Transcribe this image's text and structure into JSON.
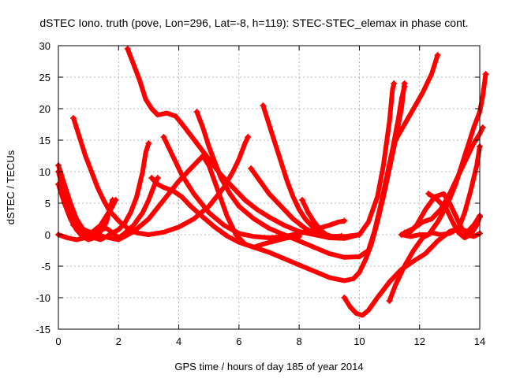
{
  "chart_data": {
    "type": "scatter",
    "title": "dSTEC Iono. truth (pove, Lon=296, Lat=-8, h=119): STEC-STEC_elemax in phase cont.",
    "xlabel": "GPS time / hours of day 185 of year 2014",
    "ylabel": "dSTEC  / TECUs",
    "xlim": [
      0,
      14
    ],
    "ylim": [
      -15,
      30
    ],
    "xticks": [
      0,
      2,
      4,
      6,
      8,
      10,
      12,
      14
    ],
    "yticks": [
      -15,
      -10,
      -5,
      0,
      5,
      10,
      15,
      20,
      25,
      30
    ],
    "grid": true,
    "marker": "plus",
    "color": "#ff0000",
    "series": [
      {
        "points": [
          [
            0,
            11
          ],
          [
            0.2,
            8
          ],
          [
            0.4,
            5
          ],
          [
            0.6,
            2.5
          ],
          [
            0.8,
            1
          ],
          [
            1.0,
            0.2
          ],
          [
            1.2,
            -0.5
          ],
          [
            1.4,
            -0.8
          ],
          [
            1.6,
            -0.3
          ],
          [
            1.8,
            0.3
          ],
          [
            2.0,
            0.8
          ],
          [
            2.2,
            1.8
          ],
          [
            2.4,
            3.5
          ],
          [
            2.6,
            6
          ],
          [
            2.8,
            10
          ],
          [
            2.9,
            13
          ],
          [
            3.0,
            14.5
          ]
        ]
      },
      {
        "points": [
          [
            0,
            8
          ],
          [
            0.2,
            5
          ],
          [
            0.4,
            2.5
          ],
          [
            0.6,
            0.8
          ],
          [
            0.8,
            -0.3
          ],
          [
            1.0,
            -0.8
          ],
          [
            1.2,
            -0.5
          ],
          [
            1.4,
            0.5
          ],
          [
            1.6,
            2
          ],
          [
            1.7,
            4
          ],
          [
            1.8,
            5.5
          ]
        ]
      },
      {
        "points": [
          [
            0,
            10
          ],
          [
            0.2,
            6.5
          ],
          [
            0.4,
            3.5
          ],
          [
            0.6,
            1.5
          ],
          [
            0.8,
            0.5
          ],
          [
            1.0,
            0
          ],
          [
            1.2,
            0.3
          ],
          [
            1.4,
            0.8
          ],
          [
            1.6,
            1
          ],
          [
            1.8,
            0.3
          ],
          [
            2.0,
            -0.5
          ],
          [
            2.2,
            0.2
          ],
          [
            2.5,
            1.5
          ],
          [
            2.8,
            3.5
          ],
          [
            3.0,
            5.5
          ],
          [
            3.2,
            8
          ],
          [
            3.3,
            9
          ]
        ]
      },
      {
        "points": [
          [
            0,
            0
          ],
          [
            0.3,
            -0.5
          ],
          [
            0.6,
            -0.8
          ],
          [
            0.9,
            -0.5
          ],
          [
            1.1,
            0.3
          ],
          [
            1.4,
            1.5
          ],
          [
            1.6,
            3
          ],
          [
            1.8,
            4.5
          ],
          [
            1.9,
            5.5
          ]
        ]
      },
      {
        "points": [
          [
            0.5,
            18.5
          ],
          [
            0.7,
            15.5
          ],
          [
            0.9,
            12.5
          ],
          [
            1.1,
            10
          ],
          [
            1.3,
            7.5
          ],
          [
            1.5,
            5.5
          ],
          [
            1.7,
            3.8
          ],
          [
            2.0,
            2.2
          ],
          [
            2.3,
            1
          ],
          [
            2.6,
            0.3
          ],
          [
            3.0,
            0
          ],
          [
            3.5,
            0.4
          ],
          [
            4.0,
            1.2
          ],
          [
            4.5,
            2.5
          ],
          [
            5.0,
            4.5
          ],
          [
            5.5,
            7.5
          ],
          [
            5.8,
            10
          ],
          [
            6.0,
            12
          ],
          [
            6.2,
            14.5
          ],
          [
            6.3,
            15.5
          ]
        ]
      },
      {
        "points": [
          [
            2.3,
            29.5
          ],
          [
            2.5,
            27
          ],
          [
            2.7,
            24.5
          ],
          [
            2.9,
            21.5
          ],
          [
            3.1,
            20
          ],
          [
            3.3,
            19
          ],
          [
            3.6,
            19.3
          ],
          [
            3.9,
            18.8
          ],
          [
            4.2,
            17
          ],
          [
            4.6,
            14.5
          ],
          [
            5.0,
            12
          ],
          [
            5.4,
            9.5
          ],
          [
            5.8,
            7.5
          ],
          [
            6.2,
            5.5
          ],
          [
            6.6,
            4
          ],
          [
            7.0,
            2.8
          ],
          [
            7.5,
            1.5
          ],
          [
            8.0,
            0.5
          ],
          [
            8.5,
            0
          ],
          [
            9.0,
            -0.5
          ],
          [
            9.5,
            -0.6
          ],
          [
            10.0,
            0
          ],
          [
            10.3,
            2
          ],
          [
            10.6,
            6
          ],
          [
            10.8,
            11
          ],
          [
            11.0,
            18
          ],
          [
            11.1,
            23
          ],
          [
            11.15,
            24
          ]
        ]
      },
      {
        "points": [
          [
            3.1,
            9
          ],
          [
            3.3,
            8
          ],
          [
            3.5,
            7.5
          ],
          [
            3.8,
            7
          ],
          [
            4.1,
            6
          ],
          [
            4.4,
            4.5
          ],
          [
            4.8,
            2.8
          ],
          [
            5.2,
            1.2
          ],
          [
            5.6,
            -0.2
          ],
          [
            6.0,
            -1.2
          ],
          [
            6.5,
            -2
          ],
          [
            7.0,
            -2.8
          ],
          [
            7.5,
            -3.8
          ],
          [
            8.0,
            -4.8
          ],
          [
            8.5,
            -5.8
          ],
          [
            9.0,
            -6.8
          ],
          [
            9.5,
            -7.3
          ],
          [
            9.8,
            -7
          ],
          [
            10.0,
            -6
          ],
          [
            10.2,
            -4
          ],
          [
            10.4,
            -1.5
          ],
          [
            10.6,
            2
          ],
          [
            10.8,
            6
          ],
          [
            11.0,
            10.5
          ],
          [
            11.2,
            15
          ],
          [
            11.4,
            20
          ],
          [
            11.5,
            24
          ]
        ]
      },
      {
        "points": [
          [
            3.5,
            15.5
          ],
          [
            3.8,
            12.5
          ],
          [
            4.1,
            9.5
          ],
          [
            4.5,
            6.5
          ],
          [
            5.0,
            3.5
          ],
          [
            5.5,
            1.5
          ],
          [
            6.0,
            0.2
          ],
          [
            6.5,
            -0.3
          ],
          [
            7.0,
            -0.5
          ],
          [
            7.5,
            -0.3
          ],
          [
            8.0,
            0.2
          ],
          [
            8.5,
            0.8
          ],
          [
            9.0,
            1.5
          ],
          [
            9.3,
            2
          ],
          [
            9.5,
            2.2
          ]
        ]
      },
      {
        "points": [
          [
            4.6,
            19.5
          ],
          [
            4.8,
            17
          ],
          [
            5.0,
            14
          ],
          [
            5.2,
            11.5
          ],
          [
            5.4,
            9
          ],
          [
            5.7,
            6.5
          ],
          [
            6.0,
            4.5
          ],
          [
            6.5,
            2.5
          ],
          [
            7.0,
            1
          ],
          [
            7.5,
            0
          ],
          [
            8.0,
            -1
          ],
          [
            8.5,
            -2
          ],
          [
            9.0,
            -3
          ],
          [
            9.5,
            -3.6
          ],
          [
            10.0,
            -3.5
          ],
          [
            10.3,
            -2.5
          ],
          [
            10.5,
            0.5
          ],
          [
            10.7,
            4.5
          ],
          [
            10.9,
            9
          ],
          [
            11.1,
            13.5
          ],
          [
            11.3,
            18.5
          ],
          [
            11.4,
            21.5
          ],
          [
            11.5,
            23.5
          ]
        ]
      },
      {
        "points": [
          [
            0.5,
            1.5
          ],
          [
            1.0,
            0.5
          ],
          [
            1.5,
            -0.3
          ],
          [
            2.0,
            -0.8
          ],
          [
            2.5,
            0.5
          ],
          [
            3.0,
            2.5
          ],
          [
            3.5,
            5.5
          ],
          [
            4.0,
            8.5
          ],
          [
            4.5,
            11
          ],
          [
            4.8,
            12.5
          ],
          [
            5.0,
            11
          ],
          [
            5.3,
            7
          ],
          [
            5.6,
            3
          ],
          [
            5.9,
            0
          ],
          [
            6.2,
            -1.5
          ],
          [
            6.5,
            -2
          ],
          [
            6.8,
            -1.5
          ],
          [
            7.2,
            -1
          ],
          [
            7.6,
            -0.5
          ],
          [
            8.0,
            -0.3
          ]
        ]
      },
      {
        "points": [
          [
            6.4,
            10.5
          ],
          [
            6.7,
            8.5
          ],
          [
            7.0,
            6.5
          ],
          [
            7.4,
            4.5
          ],
          [
            7.8,
            2.5
          ],
          [
            8.2,
            1
          ],
          [
            8.6,
            0
          ],
          [
            9.0,
            -0.3
          ],
          [
            9.5,
            -0.3
          ],
          [
            10.0,
            0
          ]
        ]
      },
      {
        "points": [
          [
            6.8,
            20.5
          ],
          [
            7.0,
            17.5
          ],
          [
            7.2,
            14.5
          ],
          [
            7.4,
            11.5
          ],
          [
            7.6,
            8.5
          ],
          [
            7.8,
            6
          ],
          [
            8.0,
            4
          ],
          [
            8.2,
            2.5
          ],
          [
            8.4,
            1.5
          ],
          [
            8.6,
            0.5
          ],
          [
            8.8,
            0
          ],
          [
            9.0,
            -0.2
          ]
        ]
      },
      {
        "points": [
          [
            8.1,
            5.5
          ],
          [
            8.3,
            3.5
          ],
          [
            8.5,
            2
          ],
          [
            8.7,
            0.8
          ],
          [
            8.9,
            0
          ],
          [
            9.1,
            -0.3
          ],
          [
            9.4,
            -0.2
          ]
        ]
      },
      {
        "points": [
          [
            9.5,
            -10
          ],
          [
            9.7,
            -11.5
          ],
          [
            9.9,
            -12.5
          ],
          [
            10.1,
            -12.8
          ],
          [
            10.3,
            -12
          ],
          [
            10.6,
            -10
          ],
          [
            11.0,
            -7.5
          ],
          [
            11.4,
            -5.5
          ],
          [
            11.8,
            -4.2
          ],
          [
            12.2,
            -3
          ],
          [
            12.6,
            -1
          ],
          [
            13.0,
            0.5
          ],
          [
            13.3,
            1
          ],
          [
            13.6,
            0.5
          ],
          [
            13.8,
            1.5
          ],
          [
            14.0,
            3
          ]
        ]
      },
      {
        "points": [
          [
            11.0,
            -10.5
          ],
          [
            11.2,
            -8
          ],
          [
            11.5,
            -5
          ],
          [
            11.8,
            -2.5
          ],
          [
            12.1,
            -0.5
          ],
          [
            12.4,
            0.3
          ],
          [
            12.7,
            0
          ],
          [
            13.0,
            0.2
          ],
          [
            13.3,
            1
          ],
          [
            13.5,
            3.5
          ],
          [
            13.7,
            7
          ],
          [
            13.9,
            11
          ],
          [
            14.0,
            14
          ]
        ]
      },
      {
        "points": [
          [
            11.6,
            0
          ],
          [
            11.9,
            1.5
          ],
          [
            12.2,
            4
          ],
          [
            12.5,
            6
          ],
          [
            12.8,
            6.5
          ],
          [
            13.0,
            5
          ],
          [
            13.2,
            3
          ],
          [
            13.4,
            1
          ],
          [
            13.6,
            0
          ],
          [
            13.8,
            -0.3
          ],
          [
            14.0,
            0.2
          ]
        ]
      },
      {
        "points": [
          [
            12.3,
            6.5
          ],
          [
            12.6,
            5.5
          ],
          [
            12.9,
            4
          ],
          [
            13.1,
            2
          ],
          [
            13.3,
            0.3
          ],
          [
            13.5,
            -0.5
          ],
          [
            13.7,
            0
          ],
          [
            13.9,
            1.5
          ],
          [
            14.0,
            2.8
          ]
        ]
      },
      {
        "points": [
          [
            11.2,
            15
          ],
          [
            11.5,
            17.5
          ],
          [
            11.8,
            20
          ],
          [
            12.1,
            22.5
          ],
          [
            12.4,
            25.5
          ],
          [
            12.6,
            28.5
          ]
        ]
      },
      {
        "points": [
          [
            11.4,
            0
          ],
          [
            11.7,
            -0.3
          ],
          [
            12.0,
            0
          ],
          [
            12.3,
            0
          ],
          [
            12.6,
            2
          ],
          [
            12.9,
            4.5
          ],
          [
            13.2,
            8
          ],
          [
            13.5,
            12.5
          ],
          [
            13.8,
            17
          ],
          [
            14.0,
            19.5
          ],
          [
            14.1,
            22
          ],
          [
            14.2,
            25.5
          ]
        ]
      },
      {
        "points": [
          [
            11.5,
            0.3
          ],
          [
            11.8,
            1
          ],
          [
            12.1,
            2
          ],
          [
            12.4,
            2.5
          ],
          [
            12.7,
            4
          ],
          [
            13.0,
            6.5
          ],
          [
            13.3,
            9.5
          ],
          [
            13.6,
            12.5
          ],
          [
            13.8,
            14.5
          ],
          [
            14.0,
            16
          ],
          [
            14.1,
            17
          ]
        ]
      }
    ]
  }
}
